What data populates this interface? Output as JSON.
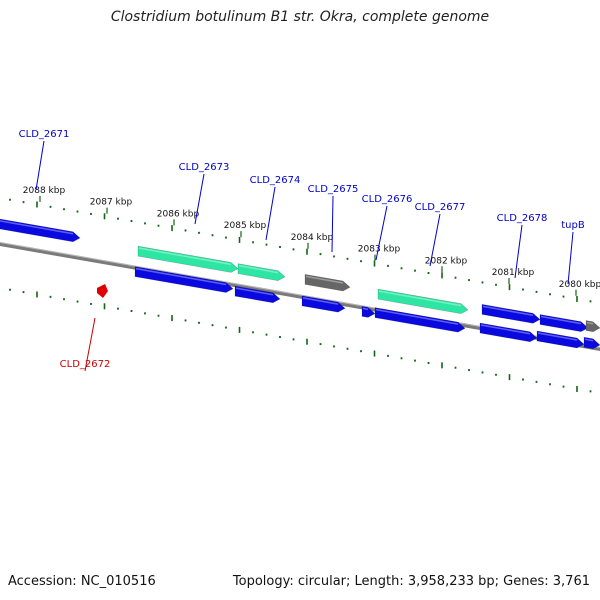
{
  "title": "Clostridium botulinum B1 str. Okra, complete genome",
  "footer": {
    "accession": "Accession: NC_010516",
    "topology": "Topology: circular; Length: 3,958,233 bp; Genes: 3,761"
  },
  "colors": {
    "backbone": "#7a7a7a",
    "gene_blue": "#0a0ae0",
    "gene_teal": "#2ee6a4",
    "gene_gray": "#666666",
    "gene_red": "#e00000",
    "tick": "#116611",
    "label_blue": "#0000cc",
    "label_red": "#cc0000"
  },
  "scale_labels": [
    "2088 kbp",
    "2087 kbp",
    "2086 kbp",
    "2085 kbp",
    "2084 kbp",
    "2083 kbp",
    "2082 kbp",
    "2081 kbp",
    "2080 kbp"
  ],
  "genes": [
    {
      "id": "g1",
      "color": "gene_blue",
      "track": 1
    },
    {
      "id": "g2",
      "label": "CLD_2672",
      "color": "gene_red",
      "track": -1
    },
    {
      "id": "g3",
      "label": "CLD_2673",
      "color": "gene_teal",
      "track": 2
    },
    {
      "id": "g4",
      "color": "gene_blue",
      "track": 1
    },
    {
      "id": "g5",
      "label": "CLD_2674",
      "color": "gene_teal",
      "track": 2
    },
    {
      "id": "g6",
      "color": "gene_blue",
      "track": 1
    },
    {
      "id": "g7",
      "label": "CLD_2675",
      "color": "gene_gray",
      "track": 2
    },
    {
      "id": "g8",
      "color": "gene_blue",
      "track": 1
    },
    {
      "id": "g9",
      "label": "CLD_2676",
      "color": "gene_blue",
      "track": 1
    },
    {
      "id": "g10",
      "label": "CLD_2677",
      "color": "gene_teal",
      "track": 2
    },
    {
      "id": "g11",
      "color": "gene_blue",
      "track": 1
    },
    {
      "id": "g12",
      "label": "CLD_2678",
      "color": "gene_blue",
      "track": 2
    },
    {
      "id": "g13",
      "color": "gene_blue",
      "track": 1
    },
    {
      "id": "g14",
      "label": "tupB",
      "color": "gene_blue",
      "track": 2
    },
    {
      "id": "g15",
      "color": "gene_blue",
      "track": 1
    },
    {
      "id": "g16",
      "color": "gene_gray",
      "track": 2
    },
    {
      "id": "g17",
      "color": "gene_blue",
      "track": 1
    }
  ],
  "extra_labels": [
    "CLD_2671"
  ]
}
